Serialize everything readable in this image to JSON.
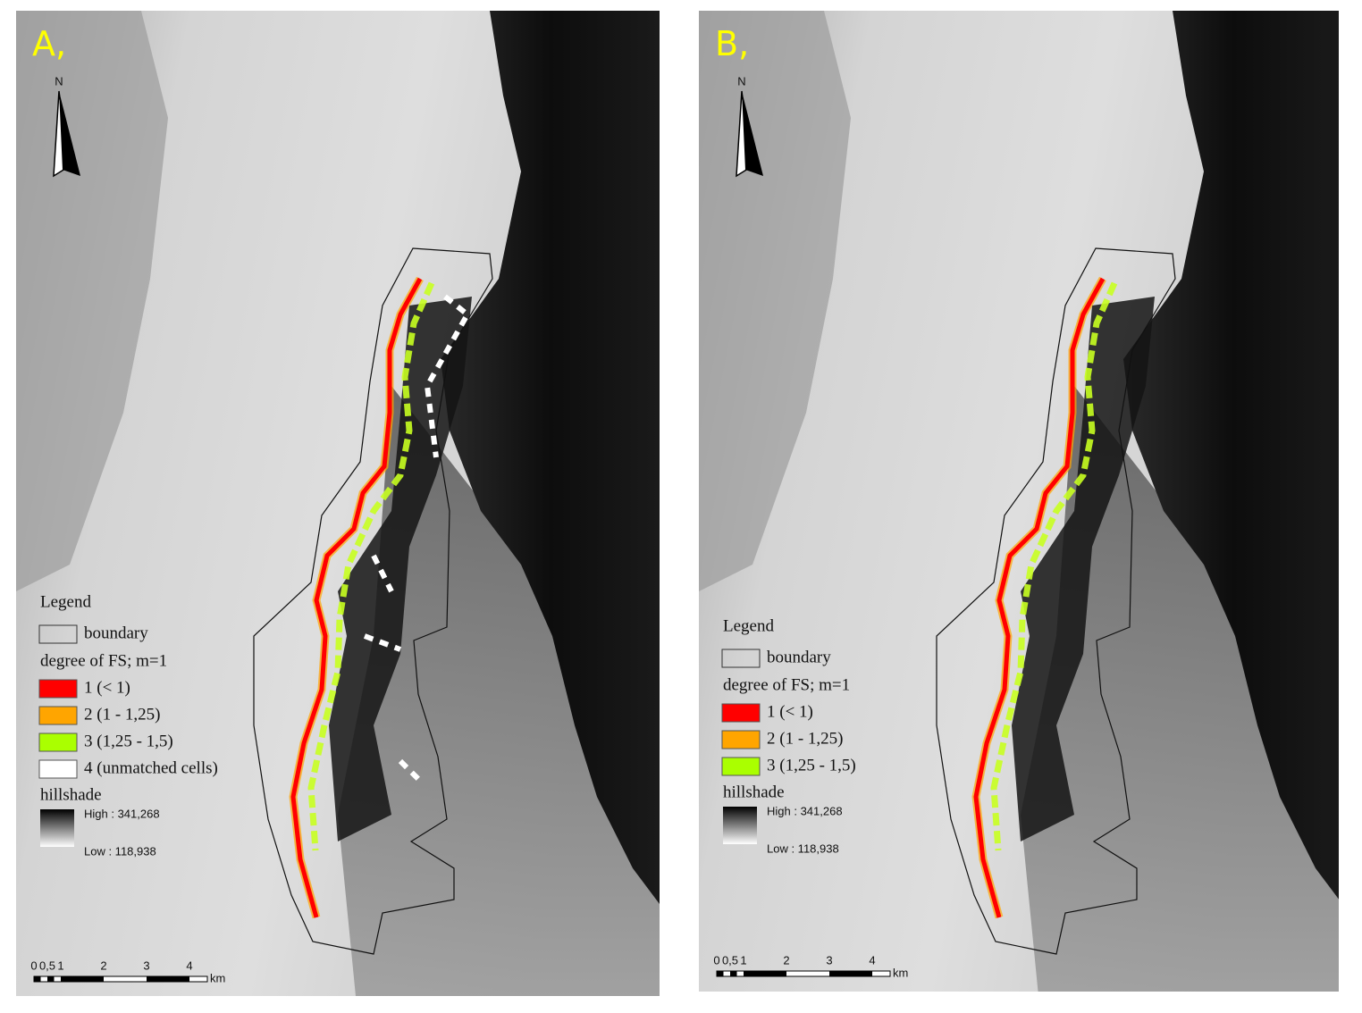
{
  "panels": [
    {
      "label": "A,",
      "north": "N",
      "legend": {
        "title": "Legend",
        "boundary": "boundary",
        "fs_title": "degree of FS; m=1",
        "classes": [
          {
            "label": "1 (< 1)",
            "color": "#ff0000"
          },
          {
            "label": "2 (1 - 1,25)",
            "color": "#ffa500"
          },
          {
            "label": "3 (1,25 - 1,5)",
            "color": "#aaff00"
          },
          {
            "label": "4 (unmatched cells)",
            "color": "#ffffff"
          }
        ],
        "hillshade": {
          "title": "hillshade",
          "high": "High : 341,268",
          "low": "Low : 118,938"
        }
      },
      "scale": {
        "ticks": [
          "0",
          "0,5",
          "1",
          "2",
          "3",
          "4"
        ],
        "unit": "km"
      }
    },
    {
      "label": "B,",
      "north": "N",
      "legend": {
        "title": "Legend",
        "boundary": "boundary",
        "fs_title": "degree of FS; m=1",
        "classes": [
          {
            "label": "1 (< 1)",
            "color": "#ff0000"
          },
          {
            "label": "2 (1 - 1,25)",
            "color": "#ffa500"
          },
          {
            "label": "3 (1,25 - 1,5)",
            "color": "#aaff00"
          }
        ],
        "hillshade": {
          "title": "hillshade",
          "high": "High : 341,268",
          "low": "Low : 118,938"
        }
      },
      "scale": {
        "ticks": [
          "0",
          "0,5",
          "1",
          "2",
          "3",
          "4"
        ],
        "unit": "km"
      }
    }
  ]
}
